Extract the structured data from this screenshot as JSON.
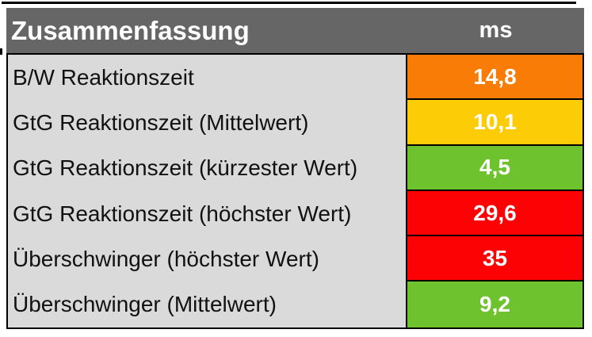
{
  "chart_data": {
    "type": "table",
    "title": "Zusammenfassung",
    "unit_header": "ms",
    "columns": [
      "Zusammenfassung",
      "ms"
    ],
    "rows": [
      {
        "label": "B/W Reaktionszeit",
        "value": "14,8",
        "value_numeric": 14.8,
        "color": "orange"
      },
      {
        "label": "GtG Reaktionszeit (Mittelwert)",
        "value": "10,1",
        "value_numeric": 10.1,
        "color": "yellow"
      },
      {
        "label": "GtG Reaktionszeit (kürzester Wert)",
        "value": "4,5",
        "value_numeric": 4.5,
        "color": "green"
      },
      {
        "label": "GtG Reaktionszeit (höchster Wert)",
        "value": "29,6",
        "value_numeric": 29.6,
        "color": "red"
      },
      {
        "label": "Überschwinger (höchster Wert)",
        "value": "35",
        "value_numeric": 35,
        "color": "red"
      },
      {
        "label": "Überschwinger (Mittelwert)",
        "value": "9,2",
        "value_numeric": 9.2,
        "color": "green"
      }
    ],
    "colors": {
      "orange": "#f87c06",
      "yellow": "#fccd06",
      "green": "#6ec22e",
      "red": "#fc0204"
    },
    "layout": {
      "header_bg": "#666666",
      "row_bg": "#dadada",
      "border_color": "#000000",
      "legend": "value cells color-coded by rating"
    }
  }
}
